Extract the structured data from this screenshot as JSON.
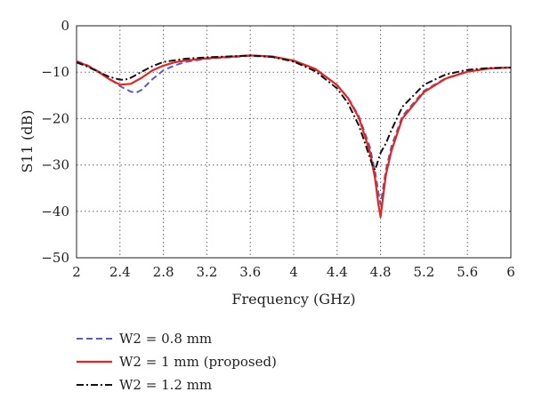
{
  "chart_data": {
    "type": "line",
    "xlabel": "Frequency (GHz)",
    "ylabel": "S11 (dB)",
    "xlim": [
      2,
      6
    ],
    "ylim": [
      -50,
      0
    ],
    "xticks": [
      "2",
      "2.4",
      "2.8",
      "3.2",
      "3.6",
      "4",
      "4.4",
      "4.8",
      "5.2",
      "5.6",
      "6"
    ],
    "yticks": [
      "0",
      "−10",
      "−20",
      "−30",
      "−40",
      "−50"
    ],
    "grid": true,
    "legend_position": "bottom-left",
    "series": [
      {
        "name": "W2 = 0.8 mm",
        "color": "#5a5abf",
        "dash": "dashed",
        "x": [
          2.0,
          2.1,
          2.2,
          2.3,
          2.4,
          2.5,
          2.55,
          2.6,
          2.7,
          2.8,
          2.9,
          3.0,
          3.2,
          3.4,
          3.6,
          3.8,
          4.0,
          4.2,
          4.4,
          4.5,
          4.6,
          4.7,
          4.75,
          4.78,
          4.8,
          4.82,
          4.85,
          4.9,
          5.0,
          5.2,
          5.4,
          5.6,
          5.8,
          6.0
        ],
        "y": [
          -7.6,
          -8.5,
          -9.8,
          -11.4,
          -13.0,
          -14.2,
          -14.4,
          -13.8,
          -11.5,
          -9.6,
          -8.6,
          -7.8,
          -7.1,
          -6.8,
          -6.5,
          -6.7,
          -7.6,
          -9.4,
          -12.8,
          -15.5,
          -19.5,
          -26.0,
          -31.5,
          -36.0,
          -38.5,
          -35.5,
          -31.0,
          -26.0,
          -19.5,
          -14.0,
          -11.3,
          -9.8,
          -9.2,
          -9.0
        ]
      },
      {
        "name": "W2 = 1 mm (proposed)",
        "color": "#e8231e",
        "dash": "solid",
        "x": [
          2.0,
          2.1,
          2.2,
          2.3,
          2.4,
          2.5,
          2.6,
          2.7,
          2.8,
          2.9,
          3.0,
          3.2,
          3.4,
          3.6,
          3.8,
          4.0,
          4.2,
          4.4,
          4.5,
          4.6,
          4.7,
          4.75,
          4.78,
          4.8,
          4.82,
          4.85,
          4.9,
          5.0,
          5.2,
          5.4,
          5.6,
          5.8,
          6.0
        ],
        "y": [
          -7.7,
          -8.6,
          -9.9,
          -11.5,
          -12.7,
          -12.5,
          -11.2,
          -9.6,
          -8.6,
          -7.9,
          -7.5,
          -7.0,
          -6.7,
          -6.4,
          -6.6,
          -7.5,
          -9.3,
          -12.8,
          -15.6,
          -19.8,
          -27.0,
          -33.0,
          -38.5,
          -41.2,
          -37.5,
          -32.0,
          -27.0,
          -20.0,
          -14.3,
          -11.4,
          -9.9,
          -9.2,
          -9.0
        ]
      },
      {
        "name": "W2 = 1.2 mm",
        "color": "#111111",
        "dash": "dashdot",
        "x": [
          2.0,
          2.1,
          2.2,
          2.3,
          2.4,
          2.45,
          2.5,
          2.6,
          2.7,
          2.8,
          3.0,
          3.2,
          3.4,
          3.6,
          3.8,
          4.0,
          4.2,
          4.4,
          4.5,
          4.6,
          4.65,
          4.7,
          4.73,
          4.75,
          4.78,
          4.8,
          4.85,
          4.9,
          5.0,
          5.2,
          5.4,
          5.6,
          5.8,
          6.0
        ],
        "y": [
          -7.9,
          -8.8,
          -9.9,
          -11.0,
          -11.6,
          -11.6,
          -11.2,
          -9.9,
          -8.7,
          -7.8,
          -7.1,
          -6.8,
          -6.6,
          -6.4,
          -6.7,
          -7.7,
          -9.8,
          -13.5,
          -16.7,
          -21.5,
          -24.8,
          -28.3,
          -30.4,
          -31.1,
          -28.8,
          -27.4,
          -25.3,
          -22.5,
          -17.5,
          -12.7,
          -10.5,
          -9.5,
          -9.1,
          -9.0
        ]
      }
    ]
  }
}
